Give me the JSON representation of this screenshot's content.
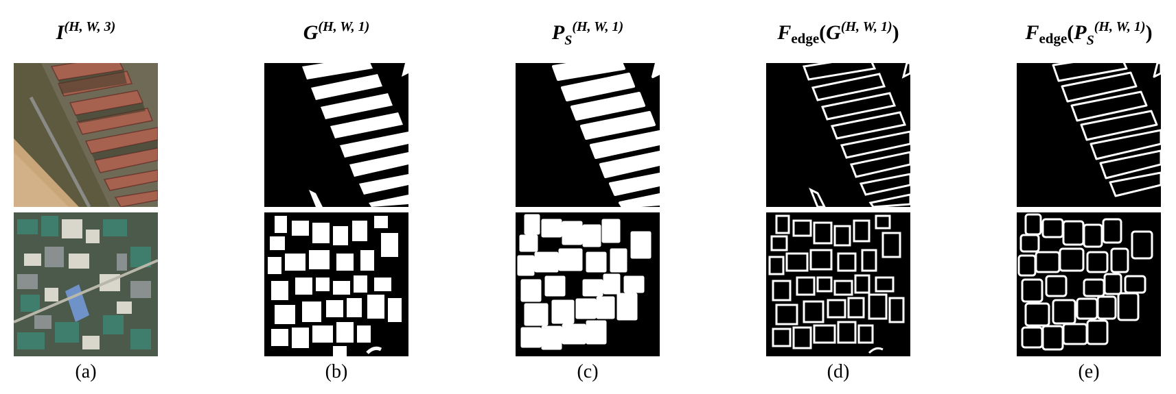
{
  "panels": [
    {
      "id": "a",
      "title": {
        "main": "I",
        "sup": "(H, W, 3)"
      },
      "caption": "(a)"
    },
    {
      "id": "b",
      "title": {
        "main": "G",
        "sup": "(H, W, 1)"
      },
      "caption": "(b)"
    },
    {
      "id": "c",
      "title": {
        "main": "P",
        "sub": "S",
        "sup": "(H, W, 1)"
      },
      "caption": "(c)"
    },
    {
      "id": "d",
      "title": {
        "fn": "F",
        "fn_sub": "edge",
        "open": "(",
        "main": "G",
        "sup": "(H, W, 1)",
        "close": ")"
      },
      "caption": "(d)"
    },
    {
      "id": "e",
      "title": {
        "fn": "F",
        "fn_sub": "edge",
        "open": "(",
        "main": "P",
        "sub": "S",
        "sup": "(H, W, 1)",
        "close": ")"
      },
      "caption": "(e)"
    }
  ],
  "colors": {
    "background": "#ffffff",
    "mask_bg": "#000000",
    "mask_fg": "#ffffff"
  }
}
